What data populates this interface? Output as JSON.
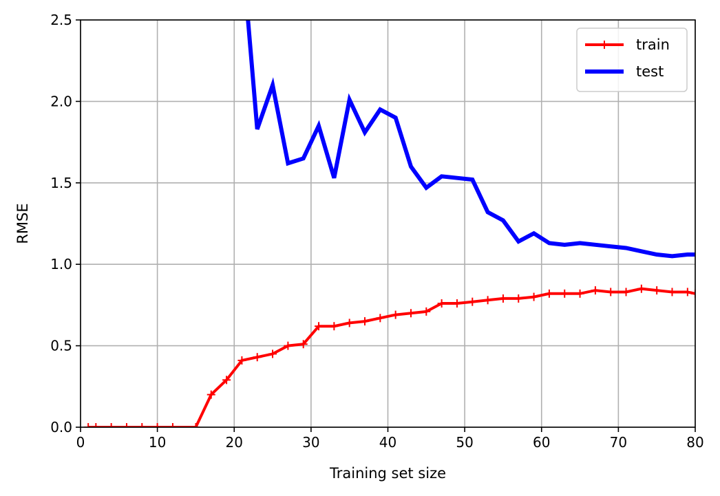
{
  "chart_data": {
    "type": "line",
    "title": "",
    "xlabel": "Training set size",
    "ylabel": "RMSE",
    "xlim": [
      0,
      80
    ],
    "ylim": [
      0,
      2.5
    ],
    "xticks": [
      0,
      10,
      20,
      30,
      40,
      50,
      60,
      70,
      80
    ],
    "yticks": [
      0.0,
      0.5,
      1.0,
      1.5,
      2.0,
      2.5
    ],
    "xtick_labels": [
      "0",
      "10",
      "20",
      "30",
      "40",
      "50",
      "60",
      "70",
      "80"
    ],
    "ytick_labels": [
      "0.0",
      "0.5",
      "1.0",
      "1.5",
      "2.0",
      "2.5"
    ],
    "grid": true,
    "legend_position": "top-right",
    "series": [
      {
        "name": "train",
        "color": "#ff0000",
        "marker": "+",
        "x": [
          1,
          2,
          4,
          6,
          8,
          10,
          12,
          15,
          17,
          19,
          21,
          23,
          25,
          27,
          29,
          31,
          33,
          35,
          37,
          39,
          41,
          43,
          45,
          47,
          49,
          51,
          53,
          55,
          57,
          59,
          61,
          63,
          65,
          67,
          69,
          71,
          73,
          75,
          77,
          79,
          80
        ],
        "y": [
          0,
          0,
          0,
          0,
          0,
          0,
          0,
          0,
          0.2,
          0.29,
          0.41,
          0.43,
          0.45,
          0.5,
          0.51,
          0.62,
          0.62,
          0.64,
          0.65,
          0.67,
          0.69,
          0.7,
          0.71,
          0.76,
          0.76,
          0.77,
          0.78,
          0.79,
          0.79,
          0.8,
          0.82,
          0.82,
          0.82,
          0.84,
          0.83,
          0.83,
          0.85,
          0.84,
          0.83,
          0.83,
          0.82
        ]
      },
      {
        "name": "test",
        "color": "#0000ff",
        "marker": "",
        "x": [
          21.8,
          23,
          25,
          27,
          29,
          31,
          33,
          35,
          37,
          39,
          41,
          43,
          45,
          47,
          49,
          51,
          53,
          55,
          57,
          59,
          61,
          63,
          65,
          67,
          69,
          71,
          73,
          75,
          77,
          79,
          80
        ],
        "y": [
          2.5,
          1.83,
          2.1,
          1.62,
          1.65,
          1.85,
          1.53,
          2.01,
          1.81,
          1.95,
          1.9,
          1.6,
          1.47,
          1.54,
          1.53,
          1.52,
          1.32,
          1.27,
          1.14,
          1.19,
          1.13,
          1.12,
          1.13,
          1.12,
          1.11,
          1.1,
          1.08,
          1.06,
          1.05,
          1.06,
          1.06
        ]
      }
    ]
  }
}
